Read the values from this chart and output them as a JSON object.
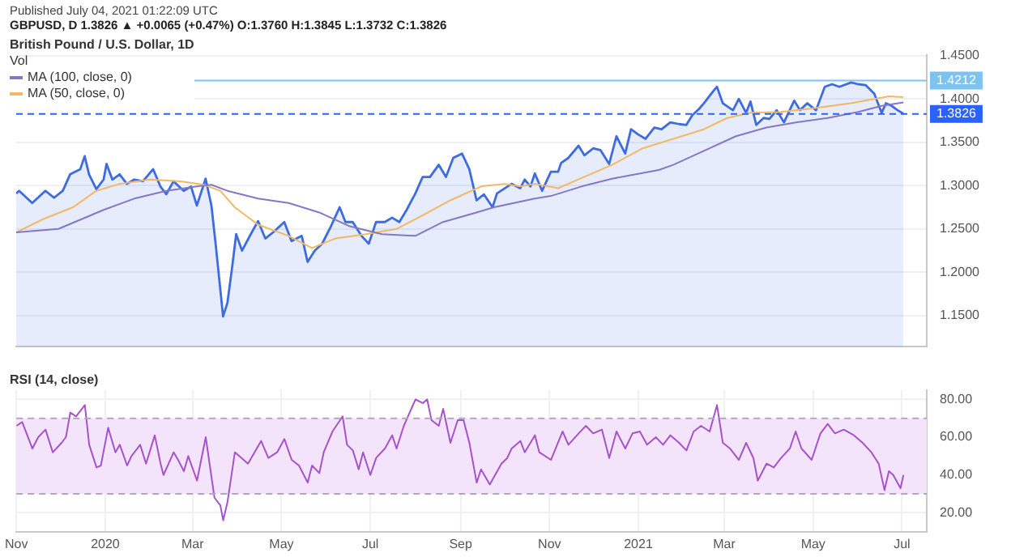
{
  "chart_data": [
    {
      "type": "area",
      "title": "British Pound / U.S. Dollar, 1D",
      "subtitle": "GBPUSD, D 1.3826 ▲ +0.0065 (+0.47%) O:1.3760 H:1.3845 L:1.3732 C:1.3826",
      "annotations": [
        "Published July 04, 2021 01:22:09 UTC",
        "Vol"
      ],
      "xlim": [
        "2019-11-01",
        "2021-07-18"
      ],
      "xticks": [
        {
          "value": "2019-11-01",
          "label": null
        },
        {
          "value": "2020-01-01",
          "label": null
        },
        {
          "value": "2020-03-01",
          "label": null
        },
        {
          "value": "2020-05-01",
          "label": null
        },
        {
          "value": "2020-07-01",
          "label": null
        },
        {
          "value": "2020-09-01",
          "label": null
        },
        {
          "value": "2020-11-01",
          "label": null
        },
        {
          "value": "2021-01-01",
          "label": null
        },
        {
          "value": "2021-03-01",
          "label": null
        },
        {
          "value": "2021-05-01",
          "label": null
        },
        {
          "value": "2021-07-01",
          "label": null
        }
      ],
      "ylim": [
        1.114,
        1.451
      ],
      "yticks": [
        {
          "value": 1.15,
          "label": "1.1500"
        },
        {
          "value": 1.2,
          "label": "1.2000"
        },
        {
          "value": 1.25,
          "label": "1.2500"
        },
        {
          "value": 1.3,
          "label": "1.3000"
        },
        {
          "value": 1.35,
          "label": "1.3500"
        },
        {
          "value": 1.4,
          "label": "1.4000"
        },
        {
          "value": 1.45,
          "label": "1.4500"
        }
      ],
      "tick_labels": "y",
      "grid": true,
      "legend": "top left",
      "ref_lines": [
        {
          "axis": "y",
          "value": 1.4212,
          "label": "1.4212",
          "color": "#7ec3ef",
          "line_style": "solid"
        },
        {
          "axis": "y",
          "value": 1.3826,
          "label": "1.3826",
          "color": "#2962ff",
          "line_style": "dashed"
        }
      ],
      "series": [
        {
          "color": "#3d6be0",
          "x": [
            "2019-11-01",
            "2019-11-03",
            "2019-11-12",
            "2019-11-21",
            "2019-11-27",
            "2019-12-03",
            "2019-12-08",
            "2019-12-15",
            "2019-12-18",
            "2019-12-21",
            "2019-12-26",
            "2019-12-31",
            "2020-01-02",
            "2020-01-06",
            "2020-01-11",
            "2020-01-16",
            "2020-01-21",
            "2020-01-27",
            "2020-02-03",
            "2020-02-08",
            "2020-02-12",
            "2020-02-17",
            "2020-02-24",
            "2020-02-29",
            "2020-03-04",
            "2020-03-10",
            "2020-03-14",
            "2020-03-17",
            "2020-03-22",
            "2020-03-25",
            "2020-03-28",
            "2020-03-31",
            "2020-04-04",
            "2020-04-10",
            "2020-04-15",
            "2020-04-20",
            "2020-04-26",
            "2020-05-03",
            "2020-05-08",
            "2020-05-15",
            "2020-05-19",
            "2020-05-24",
            "2020-05-29",
            "2020-06-04",
            "2020-06-10",
            "2020-06-14",
            "2020-06-19",
            "2020-06-25",
            "2020-06-30",
            "2020-07-05",
            "2020-07-11",
            "2020-07-16",
            "2020-07-21",
            "2020-07-26",
            "2020-08-01",
            "2020-08-06",
            "2020-08-11",
            "2020-08-17",
            "2020-08-22",
            "2020-08-27",
            "2020-09-02",
            "2020-09-07",
            "2020-09-12",
            "2020-09-17",
            "2020-09-23",
            "2020-09-26",
            "2020-10-06",
            "2020-10-12",
            "2020-10-15",
            "2020-10-19",
            "2020-10-22",
            "2020-10-27",
            "2020-11-02",
            "2020-11-07",
            "2020-11-09",
            "2020-11-14",
            "2020-11-21",
            "2020-11-25",
            "2020-12-01",
            "2020-12-06",
            "2020-12-12",
            "2020-12-17",
            "2020-12-23",
            "2020-12-27",
            "2021-01-01",
            "2021-01-06",
            "2021-01-12",
            "2021-01-17",
            "2021-01-23",
            "2021-01-29",
            "2021-02-03",
            "2021-02-07",
            "2021-02-12",
            "2021-02-15",
            "2021-02-21",
            "2021-02-24",
            "2021-02-28",
            "2021-03-07",
            "2021-03-11",
            "2021-03-16",
            "2021-03-19",
            "2021-03-23",
            "2021-03-28",
            "2021-04-01",
            "2021-04-06",
            "2021-04-11",
            "2021-04-18",
            "2021-04-22",
            "2021-04-27",
            "2021-05-03",
            "2021-05-09",
            "2021-05-14",
            "2021-05-19",
            "2021-05-27",
            "2021-06-01",
            "2021-06-06",
            "2021-06-12",
            "2021-06-17",
            "2021-06-20",
            "2021-06-24",
            "2021-06-28",
            "2021-07-02"
          ],
          "values": [
            1.291,
            1.294,
            1.28,
            1.294,
            1.286,
            1.294,
            1.313,
            1.319,
            1.334,
            1.313,
            1.296,
            1.307,
            1.325,
            1.307,
            1.313,
            1.302,
            1.307,
            1.305,
            1.319,
            1.299,
            1.29,
            1.305,
            1.294,
            1.299,
            1.277,
            1.308,
            1.277,
            1.231,
            1.149,
            1.165,
            1.203,
            1.244,
            1.225,
            1.244,
            1.259,
            1.239,
            1.247,
            1.258,
            1.236,
            1.242,
            1.212,
            1.225,
            1.233,
            1.253,
            1.275,
            1.258,
            1.258,
            1.242,
            1.233,
            1.258,
            1.258,
            1.263,
            1.258,
            1.272,
            1.291,
            1.31,
            1.31,
            1.324,
            1.31,
            1.332,
            1.337,
            1.319,
            1.283,
            1.29,
            1.275,
            1.291,
            1.302,
            1.297,
            1.307,
            1.299,
            1.314,
            1.294,
            1.316,
            1.316,
            1.326,
            1.332,
            1.346,
            1.335,
            1.343,
            1.341,
            1.325,
            1.357,
            1.337,
            1.365,
            1.359,
            1.354,
            1.367,
            1.365,
            1.373,
            1.371,
            1.37,
            1.381,
            1.389,
            1.395,
            1.408,
            1.414,
            1.395,
            1.387,
            1.4,
            1.384,
            1.397,
            1.37,
            1.378,
            1.377,
            1.387,
            1.373,
            1.398,
            1.387,
            1.395,
            1.387,
            1.414,
            1.417,
            1.414,
            1.419,
            1.417,
            1.416,
            1.406,
            1.384,
            1.395,
            1.392,
            1.387,
            1.383
          ]
        },
        {
          "type": "line",
          "name": "MA (100, close, 0)",
          "color": "#8478c6",
          "x": [
            "2019-11-01",
            "2019-11-30",
            "2019-12-31",
            "2020-01-21",
            "2020-02-12",
            "2020-03-04",
            "2020-03-14",
            "2020-03-25",
            "2020-04-15",
            "2020-05-06",
            "2020-05-27",
            "2020-06-17",
            "2020-07-09",
            "2020-08-01",
            "2020-08-20",
            "2020-09-10",
            "2020-09-24",
            "2020-10-22",
            "2020-11-02",
            "2020-11-23",
            "2020-12-14",
            "2021-01-15",
            "2021-01-25",
            "2021-02-15",
            "2021-03-09",
            "2021-03-30",
            "2021-04-20",
            "2021-05-11",
            "2021-06-01",
            "2021-06-17",
            "2021-07-02"
          ],
          "values": [
            1.246,
            1.25,
            1.272,
            1.285,
            1.294,
            1.299,
            1.301,
            1.294,
            1.285,
            1.28,
            1.269,
            1.253,
            1.244,
            1.242,
            1.258,
            1.268,
            1.275,
            1.285,
            1.288,
            1.299,
            1.308,
            1.318,
            1.324,
            1.34,
            1.357,
            1.367,
            1.373,
            1.378,
            1.385,
            1.392,
            1.396
          ]
        },
        {
          "type": "line",
          "name": "MA (50, close, 0)",
          "color": "#f2b866",
          "x": [
            "2019-11-01",
            "2019-11-19",
            "2019-12-10",
            "2019-12-26",
            "2020-01-11",
            "2020-02-01",
            "2020-02-22",
            "2020-03-09",
            "2020-03-20",
            "2020-03-30",
            "2020-04-15",
            "2020-05-06",
            "2020-05-22",
            "2020-06-07",
            "2020-06-28",
            "2020-07-19",
            "2020-08-04",
            "2020-08-25",
            "2020-09-15",
            "2020-10-01",
            "2020-10-12",
            "2020-10-22",
            "2020-11-07",
            "2020-11-18",
            "2020-12-14",
            "2021-01-04",
            "2021-01-25",
            "2021-02-15",
            "2021-03-03",
            "2021-03-19",
            "2021-04-09",
            "2021-04-30",
            "2021-05-27",
            "2021-06-12",
            "2021-06-22",
            "2021-07-02"
          ],
          "values": [
            1.246,
            1.261,
            1.275,
            1.294,
            1.302,
            1.307,
            1.305,
            1.301,
            1.294,
            1.275,
            1.255,
            1.242,
            1.228,
            1.239,
            1.244,
            1.25,
            1.264,
            1.283,
            1.299,
            1.302,
            1.299,
            1.302,
            1.297,
            1.305,
            1.324,
            1.343,
            1.354,
            1.365,
            1.378,
            1.384,
            1.385,
            1.389,
            1.395,
            1.4,
            1.403,
            1.402
          ]
        }
      ]
    },
    {
      "type": "line",
      "title": "RSI (14, close)",
      "xlim": [
        "2019-11-01",
        "2021-07-18"
      ],
      "xticks": [
        {
          "value": "2019-11-01",
          "label": "Nov"
        },
        {
          "value": "2020-01-01",
          "label": "2020"
        },
        {
          "value": "2020-03-01",
          "label": "Mar"
        },
        {
          "value": "2020-05-01",
          "label": "May"
        },
        {
          "value": "2020-07-01",
          "label": "Jul"
        },
        {
          "value": "2020-09-01",
          "label": "Sep"
        },
        {
          "value": "2020-11-01",
          "label": "Nov"
        },
        {
          "value": "2021-01-01",
          "label": "2021"
        },
        {
          "value": "2021-03-01",
          "label": "Mar"
        },
        {
          "value": "2021-05-01",
          "label": "May"
        },
        {
          "value": "2021-07-01",
          "label": "Jul"
        }
      ],
      "ylim": [
        10,
        85
      ],
      "yticks": [
        {
          "value": 20,
          "label": "20.00"
        },
        {
          "value": 40,
          "label": "40.00"
        },
        {
          "value": 60,
          "label": "60.00"
        },
        {
          "value": 80,
          "label": "80.00"
        }
      ],
      "grid": true,
      "bands": [
        {
          "axis": "y",
          "from": 30,
          "to": 70,
          "color": "#f3e3fb"
        }
      ],
      "ref_lines": [
        {
          "axis": "y",
          "value": 30,
          "color": "#b0a8c0",
          "line_style": "dashed"
        },
        {
          "axis": "y",
          "value": 70,
          "color": "#b0a8c0",
          "line_style": "dashed"
        }
      ],
      "series": [
        {
          "color": "#a653c9",
          "x": [
            "2019-11-01",
            "2019-11-05",
            "2019-11-12",
            "2019-11-16",
            "2019-11-21",
            "2019-11-26",
            "2019-12-02",
            "2019-12-05",
            "2019-12-08",
            "2019-12-12",
            "2019-12-18",
            "2019-12-21",
            "2019-12-26",
            "2019-12-29",
            "2020-01-03",
            "2020-01-08",
            "2020-01-11",
            "2020-01-16",
            "2020-01-19",
            "2020-01-25",
            "2020-01-29",
            "2020-02-04",
            "2020-02-08",
            "2020-02-10",
            "2020-02-17",
            "2020-02-20",
            "2020-02-24",
            "2020-02-27",
            "2020-03-04",
            "2020-03-10",
            "2020-03-16",
            "2020-03-20",
            "2020-03-22",
            "2020-03-25",
            "2020-03-30",
            "2020-04-02",
            "2020-04-08",
            "2020-04-17",
            "2020-04-22",
            "2020-04-28",
            "2020-05-03",
            "2020-05-08",
            "2020-05-13",
            "2020-05-19",
            "2020-05-22",
            "2020-05-27",
            "2020-05-30",
            "2020-06-05",
            "2020-06-12",
            "2020-06-15",
            "2020-06-19",
            "2020-06-23",
            "2020-06-26",
            "2020-07-01",
            "2020-07-05",
            "2020-07-11",
            "2020-07-16",
            "2020-07-19",
            "2020-07-24",
            "2020-08-01",
            "2020-08-06",
            "2020-08-09",
            "2020-08-12",
            "2020-08-17",
            "2020-08-20",
            "2020-08-25",
            "2020-08-30",
            "2020-09-03",
            "2020-09-07",
            "2020-09-12",
            "2020-09-15",
            "2020-09-21",
            "2020-09-29",
            "2020-10-03",
            "2020-10-06",
            "2020-10-12",
            "2020-10-15",
            "2020-10-22",
            "2020-10-25",
            "2020-11-02",
            "2020-11-10",
            "2020-11-14",
            "2020-11-21",
            "2020-11-26",
            "2020-12-01",
            "2020-12-07",
            "2020-12-12",
            "2020-12-17",
            "2020-12-23",
            "2020-12-28",
            "2021-01-02",
            "2021-01-07",
            "2021-01-13",
            "2021-01-18",
            "2021-01-23",
            "2021-01-29",
            "2021-02-03",
            "2021-02-08",
            "2021-02-13",
            "2021-02-19",
            "2021-02-24",
            "2021-02-28",
            "2021-03-05",
            "2021-03-11",
            "2021-03-16",
            "2021-03-21",
            "2021-03-24",
            "2021-03-30",
            "2021-04-04",
            "2021-04-09",
            "2021-04-15",
            "2021-04-19",
            "2021-04-23",
            "2021-04-30",
            "2021-05-06",
            "2021-05-11",
            "2021-05-16",
            "2021-05-22",
            "2021-05-29",
            "2021-06-04",
            "2021-06-10",
            "2021-06-15",
            "2021-06-19",
            "2021-06-22",
            "2021-06-25",
            "2021-06-30",
            "2021-07-02"
          ],
          "values": [
            66,
            68,
            54,
            60,
            64,
            52,
            57,
            60,
            73,
            71,
            77,
            56,
            44,
            45,
            65,
            52,
            56,
            45,
            50,
            56,
            46,
            61,
            46,
            40,
            52,
            48,
            42,
            50,
            37,
            60,
            28,
            24,
            16,
            26,
            52,
            50,
            46,
            58,
            49,
            52,
            59,
            48,
            45,
            36,
            45,
            41,
            52,
            63,
            71,
            56,
            53,
            43,
            52,
            40,
            49,
            54,
            61,
            54,
            66,
            80,
            78,
            80,
            69,
            66,
            75,
            57,
            69,
            69,
            57,
            36,
            43,
            35,
            46,
            49,
            54,
            58,
            52,
            61,
            52,
            48,
            63,
            56,
            62,
            66,
            62,
            64,
            49,
            63,
            54,
            62,
            63,
            56,
            60,
            56,
            61,
            57,
            53,
            63,
            66,
            63,
            77,
            57,
            54,
            48,
            57,
            49,
            37,
            46,
            44,
            49,
            54,
            63,
            54,
            48,
            62,
            67,
            62,
            64,
            61,
            57,
            52,
            46,
            32,
            42,
            40,
            33,
            40
          ]
        }
      ]
    }
  ]
}
